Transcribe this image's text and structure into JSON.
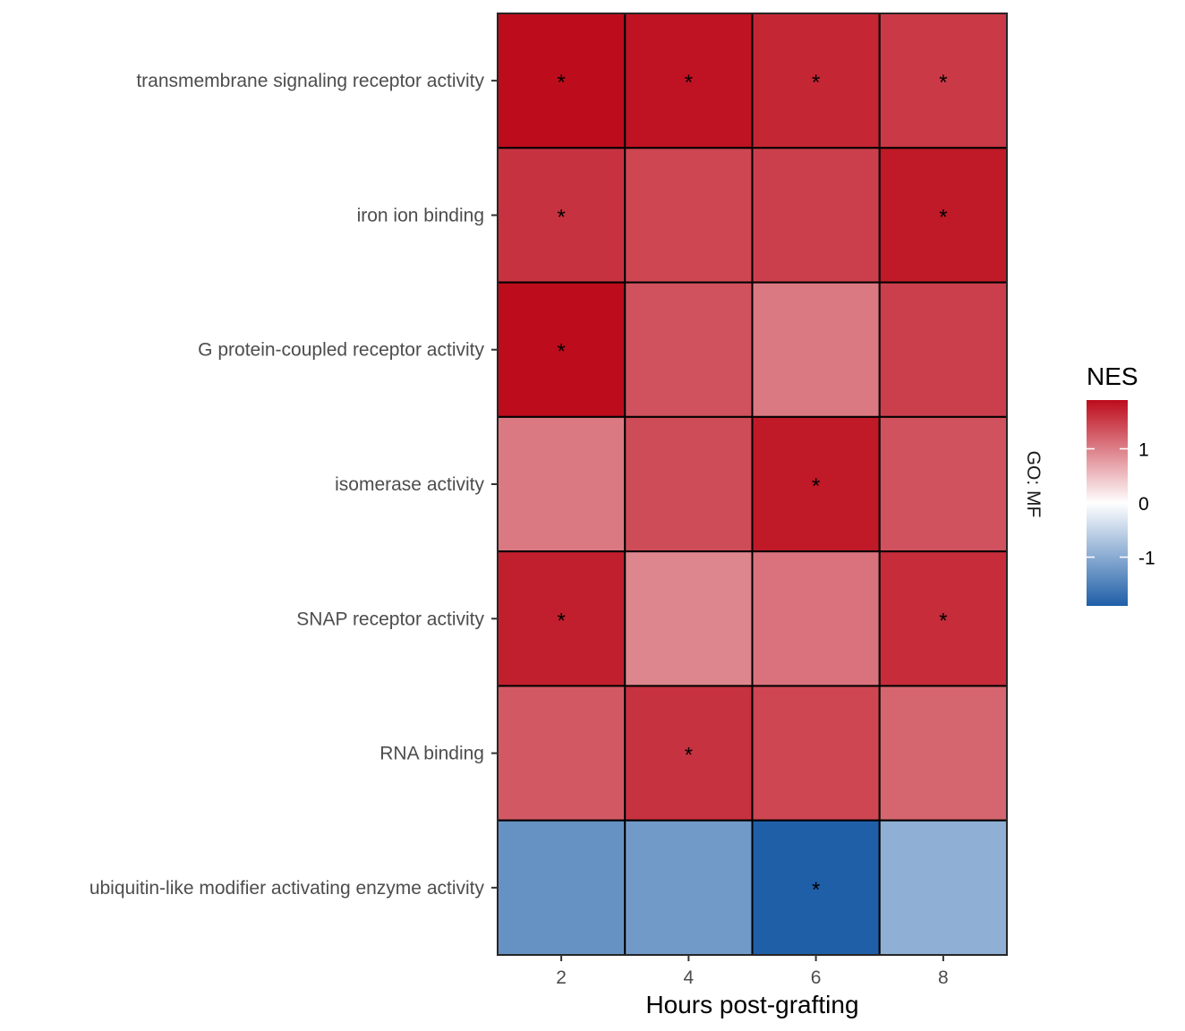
{
  "chart_data": {
    "type": "heatmap",
    "xlabel": "Hours post-grafting",
    "ylabel": "",
    "facet_label": "GO: MF",
    "x_categories": [
      "2",
      "4",
      "6",
      "8"
    ],
    "y_categories": [
      "transmembrane signaling receptor activity",
      "iron ion binding",
      "G protein-coupled receptor activity",
      "isomerase activity",
      "SNAP receptor activity",
      "RNA binding",
      "ubiquitin-like modifier activating enzyme activity"
    ],
    "values": [
      [
        1.95,
        1.85,
        1.7,
        1.55
      ],
      [
        1.6,
        1.45,
        1.5,
        1.8
      ],
      [
        1.9,
        1.35,
        1.05,
        1.5
      ],
      [
        1.05,
        1.4,
        1.8,
        1.35
      ],
      [
        1.75,
        0.95,
        1.1,
        1.65
      ],
      [
        1.3,
        1.6,
        1.45,
        1.2
      ],
      [
        -1.3,
        -1.2,
        -1.9,
        -0.95
      ]
    ],
    "significant": [
      [
        true,
        true,
        true,
        true
      ],
      [
        true,
        false,
        false,
        true
      ],
      [
        true,
        false,
        false,
        false
      ],
      [
        false,
        false,
        true,
        false
      ],
      [
        true,
        false,
        false,
        true
      ],
      [
        false,
        true,
        false,
        false
      ],
      [
        false,
        false,
        true,
        false
      ]
    ],
    "significance_marker": "*",
    "legend": {
      "title": "NES",
      "ticks": [
        "1",
        "0",
        "-1"
      ],
      "tick_values": [
        1,
        0,
        -1
      ],
      "range": [
        -1.9,
        1.9
      ],
      "placement": "right"
    },
    "colors": {
      "low": "#1f5fa8",
      "mid": "#ffffff",
      "high": "#bd0c1c",
      "tile_border": "#000000"
    }
  }
}
